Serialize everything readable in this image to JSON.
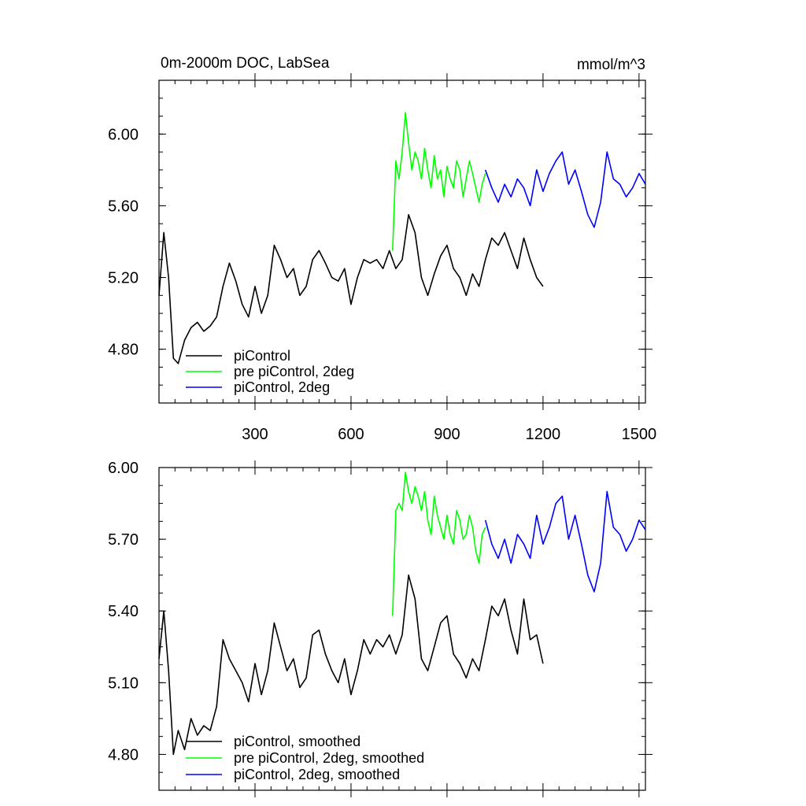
{
  "chart_data": [
    {
      "type": "line",
      "title": "0m-2000m DOC, LabSea",
      "units_label": "mmol/m^3",
      "xlim": [
        0,
        1520
      ],
      "ylim": [
        4.5,
        6.3
      ],
      "x_ticks": [
        300,
        600,
        900,
        1200,
        1500
      ],
      "x_tick_labels": [
        "300",
        "600",
        "900",
        "1200",
        "1500"
      ],
      "y_ticks": [
        4.8,
        5.2,
        5.6,
        6.0
      ],
      "y_tick_labels": [
        "4.80",
        "5.20",
        "5.60",
        "6.00"
      ],
      "legend_position": "bottom-left",
      "series": [
        {
          "name": "piControl",
          "color": "#000000",
          "x": [
            0,
            15,
            30,
            45,
            60,
            80,
            100,
            120,
            140,
            160,
            180,
            200,
            220,
            240,
            260,
            280,
            300,
            320,
            340,
            360,
            380,
            400,
            420,
            440,
            460,
            480,
            500,
            520,
            540,
            560,
            580,
            600,
            620,
            640,
            660,
            680,
            700,
            720,
            740,
            760,
            780,
            800,
            820,
            840,
            860,
            880,
            900,
            920,
            940,
            960,
            980,
            1000,
            1020,
            1040,
            1060,
            1080,
            1100,
            1120,
            1140,
            1160,
            1180,
            1200
          ],
          "y": [
            5.1,
            5.45,
            5.2,
            4.75,
            4.72,
            4.85,
            4.92,
            4.95,
            4.9,
            4.93,
            4.98,
            5.15,
            5.28,
            5.18,
            5.05,
            4.98,
            5.15,
            5.0,
            5.1,
            5.38,
            5.3,
            5.2,
            5.25,
            5.1,
            5.15,
            5.3,
            5.35,
            5.28,
            5.2,
            5.18,
            5.25,
            5.05,
            5.2,
            5.3,
            5.28,
            5.3,
            5.25,
            5.35,
            5.25,
            5.3,
            5.55,
            5.45,
            5.2,
            5.1,
            5.22,
            5.32,
            5.38,
            5.25,
            5.2,
            5.1,
            5.22,
            5.15,
            5.3,
            5.42,
            5.38,
            5.45,
            5.35,
            5.25,
            5.42,
            5.3,
            5.2,
            5.15
          ]
        },
        {
          "name": "pre piControl, 2deg",
          "color": "#00ff00",
          "x": [
            730,
            740,
            750,
            760,
            770,
            780,
            790,
            800,
            810,
            820,
            830,
            840,
            850,
            860,
            870,
            880,
            890,
            900,
            910,
            920,
            930,
            940,
            950,
            960,
            970,
            980,
            990,
            1000,
            1010,
            1020
          ],
          "y": [
            5.35,
            5.85,
            5.75,
            5.9,
            6.12,
            5.95,
            5.8,
            5.9,
            5.85,
            5.75,
            5.92,
            5.8,
            5.7,
            5.88,
            5.75,
            5.8,
            5.65,
            5.82,
            5.75,
            5.7,
            5.85,
            5.8,
            5.65,
            5.75,
            5.85,
            5.78,
            5.7,
            5.62,
            5.72,
            5.78
          ]
        },
        {
          "name": "piControl, 2deg",
          "color": "#0000ff",
          "x": [
            1020,
            1040,
            1060,
            1080,
            1100,
            1120,
            1140,
            1160,
            1180,
            1200,
            1220,
            1240,
            1260,
            1280,
            1300,
            1320,
            1340,
            1360,
            1380,
            1400,
            1420,
            1440,
            1460,
            1480,
            1500,
            1520
          ],
          "y": [
            5.8,
            5.7,
            5.62,
            5.72,
            5.65,
            5.75,
            5.7,
            5.6,
            5.8,
            5.68,
            5.78,
            5.85,
            5.9,
            5.72,
            5.8,
            5.68,
            5.55,
            5.48,
            5.62,
            5.9,
            5.75,
            5.72,
            5.65,
            5.7,
            5.78,
            5.72
          ]
        }
      ],
      "grid": false
    },
    {
      "type": "line",
      "title": "",
      "xlim": [
        0,
        1520
      ],
      "ylim": [
        4.65,
        6.0
      ],
      "x_ticks": [
        300,
        600,
        900,
        1200,
        1500
      ],
      "y_ticks": [
        4.8,
        5.1,
        5.4,
        5.7,
        6.0
      ],
      "y_tick_labels": [
        "4.80",
        "5.10",
        "5.40",
        "5.70",
        "6.00"
      ],
      "legend_position": "bottom-left",
      "series": [
        {
          "name": "piControl, smoothed",
          "color": "#000000",
          "x": [
            0,
            15,
            30,
            45,
            60,
            80,
            100,
            120,
            140,
            160,
            180,
            200,
            220,
            240,
            260,
            280,
            300,
            320,
            340,
            360,
            380,
            400,
            420,
            440,
            460,
            480,
            500,
            520,
            540,
            560,
            580,
            600,
            620,
            640,
            660,
            680,
            700,
            720,
            740,
            760,
            780,
            800,
            820,
            840,
            860,
            880,
            900,
            920,
            940,
            960,
            980,
            1000,
            1020,
            1040,
            1060,
            1080,
            1100,
            1120,
            1140,
            1160,
            1180,
            1200
          ],
          "y": [
            5.2,
            5.4,
            5.15,
            4.8,
            4.9,
            4.82,
            4.95,
            4.88,
            4.92,
            4.9,
            5.0,
            5.28,
            5.2,
            5.15,
            5.1,
            5.02,
            5.18,
            5.05,
            5.15,
            5.35,
            5.25,
            5.15,
            5.2,
            5.08,
            5.12,
            5.3,
            5.32,
            5.22,
            5.15,
            5.1,
            5.2,
            5.05,
            5.15,
            5.28,
            5.22,
            5.28,
            5.25,
            5.3,
            5.22,
            5.3,
            5.55,
            5.45,
            5.2,
            5.15,
            5.25,
            5.35,
            5.38,
            5.22,
            5.18,
            5.12,
            5.2,
            5.15,
            5.28,
            5.42,
            5.38,
            5.45,
            5.32,
            5.22,
            5.45,
            5.28,
            5.3,
            5.18
          ]
        },
        {
          "name": "pre piControl, 2deg, smoothed",
          "color": "#00ff00",
          "x": [
            730,
            740,
            750,
            760,
            770,
            780,
            790,
            800,
            810,
            820,
            830,
            840,
            850,
            860,
            870,
            880,
            890,
            900,
            910,
            920,
            930,
            940,
            950,
            960,
            970,
            980,
            990,
            1000,
            1010,
            1020
          ],
          "y": [
            5.38,
            5.82,
            5.85,
            5.82,
            5.98,
            5.9,
            5.85,
            5.92,
            5.88,
            5.82,
            5.9,
            5.78,
            5.72,
            5.88,
            5.8,
            5.75,
            5.7,
            5.8,
            5.72,
            5.68,
            5.82,
            5.78,
            5.7,
            5.72,
            5.8,
            5.75,
            5.65,
            5.6,
            5.72,
            5.75
          ]
        },
        {
          "name": "piControl, 2deg, smoothed",
          "color": "#0000ff",
          "x": [
            1020,
            1040,
            1060,
            1080,
            1100,
            1120,
            1140,
            1160,
            1180,
            1200,
            1220,
            1240,
            1260,
            1280,
            1300,
            1320,
            1340,
            1360,
            1380,
            1400,
            1420,
            1440,
            1460,
            1480,
            1500,
            1520
          ],
          "y": [
            5.78,
            5.68,
            5.62,
            5.7,
            5.6,
            5.72,
            5.68,
            5.62,
            5.8,
            5.68,
            5.75,
            5.85,
            5.88,
            5.7,
            5.8,
            5.68,
            5.55,
            5.48,
            5.6,
            5.9,
            5.75,
            5.72,
            5.65,
            5.7,
            5.78,
            5.74
          ]
        }
      ],
      "grid": false
    }
  ]
}
